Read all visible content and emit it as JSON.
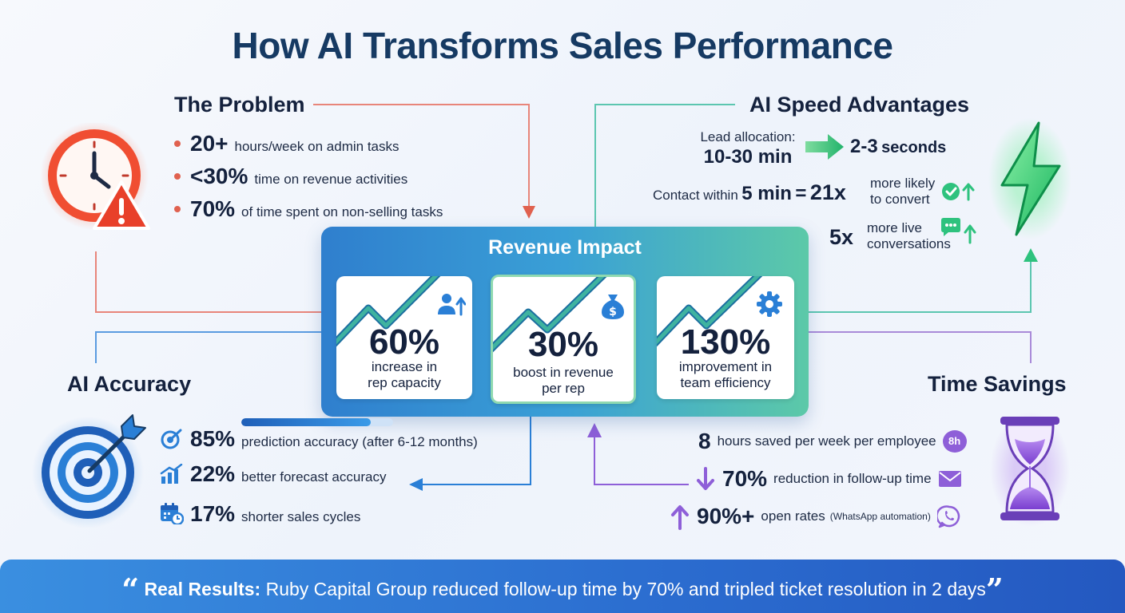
{
  "title": "How AI Transforms Sales Performance",
  "problem": {
    "title": "The Problem",
    "items": [
      {
        "value": "20+",
        "text": "hours/week on admin tasks"
      },
      {
        "value": "<30%",
        "text": "time on revenue activities"
      },
      {
        "value": "70%",
        "text": "of time spent on non-selling tasks"
      }
    ]
  },
  "speed": {
    "title": "AI Speed Advantages",
    "lead_label": "Lead allocation:",
    "lead_before": "10-30 min",
    "lead_after_value": "2-3",
    "lead_after_unit": "seconds",
    "contact_prefix": "Contact within",
    "contact_time": "5 min",
    "contact_eq": "=",
    "contact_multiplier": "21x",
    "contact_line1": "more likely",
    "contact_line2": "to convert",
    "live_value": "5x",
    "live_line1": "more live",
    "live_line2": "conversations"
  },
  "revenue": {
    "title": "Revenue Impact",
    "cards": [
      {
        "value": "60%",
        "line1": "increase in",
        "line2": "rep capacity"
      },
      {
        "value": "30%",
        "line1": "boost in revenue",
        "line2": "per rep"
      },
      {
        "value": "130%",
        "line1": "improvement in",
        "line2": "team efficiency"
      }
    ]
  },
  "accuracy": {
    "title": "AI Accuracy",
    "items": [
      {
        "value": "85%",
        "text": "prediction accuracy (after 6-12 months)",
        "progress": 0.85
      },
      {
        "value": "22%",
        "text": "better forecast accuracy"
      },
      {
        "value": "17%",
        "text": "shorter sales cycles"
      }
    ]
  },
  "time": {
    "title": "Time Savings",
    "items": [
      {
        "value": "8",
        "text": "hours saved per week per employee",
        "badge": "8h"
      },
      {
        "value": "70%",
        "text": "reduction in follow-up time"
      },
      {
        "value": "90%+",
        "text": "open rates",
        "note": "(WhatsApp automation)"
      }
    ]
  },
  "banner": {
    "open_quote": "“",
    "label": "Real Results:",
    "text": "Ruby Capital Group reduced follow-up time by 70% and tripled ticket resolution in 2 days",
    "close_quote": "”"
  },
  "colors": {
    "problem": "#e0614f",
    "speed": "#2ec27e",
    "accuracy": "#2a7fd6",
    "time": "#8e5fd8",
    "title": "#163a63"
  }
}
